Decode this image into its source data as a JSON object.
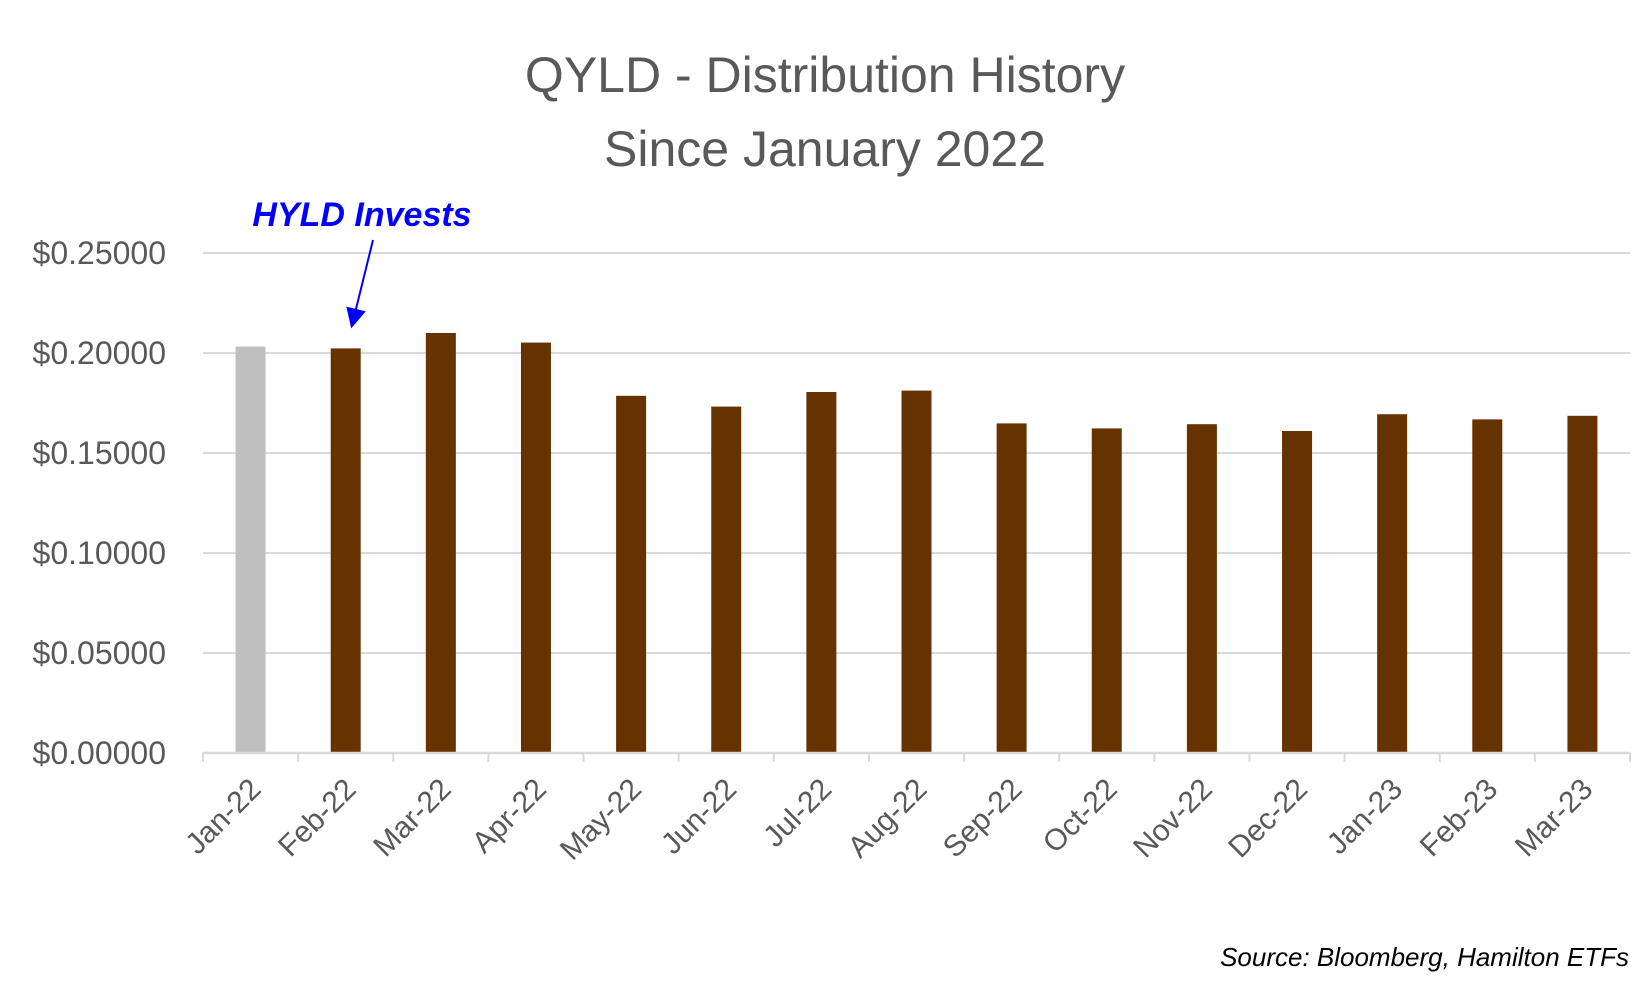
{
  "chart_data": {
    "type": "bar",
    "title": [
      "QYLD - Distribution History",
      "Since January 2022"
    ],
    "categories": [
      "Jan-22",
      "Feb-22",
      "Mar-22",
      "Apr-22",
      "May-22",
      "Jun-22",
      "Jul-22",
      "Aug-22",
      "Sep-22",
      "Oct-22",
      "Nov-22",
      "Dec-22",
      "Jan-23",
      "Feb-23",
      "Mar-23"
    ],
    "values": [
      0.2032,
      0.2023,
      0.21,
      0.2052,
      0.1786,
      0.1732,
      0.1805,
      0.1812,
      0.1648,
      0.1623,
      0.1644,
      0.161,
      0.1694,
      0.1668,
      0.1686
    ],
    "bar_colors": [
      "#bfbfbf",
      "#663300",
      "#663300",
      "#663300",
      "#663300",
      "#663300",
      "#663300",
      "#663300",
      "#663300",
      "#663300",
      "#663300",
      "#663300",
      "#663300",
      "#663300",
      "#663300"
    ],
    "ylim": [
      0,
      0.25
    ],
    "yticks": [
      "$0.00000",
      "$0.05000",
      "$0.10000",
      "$0.15000",
      "$0.20000",
      "$0.25000"
    ],
    "ytick_values": [
      0,
      0.05,
      0.1,
      0.15,
      0.2,
      0.25
    ],
    "grid": true,
    "legend": "none",
    "annotation": {
      "text": "HYLD Invests",
      "target_category": "Feb-22",
      "color": "#0000ff"
    },
    "source": "Source: Bloomberg,  Hamilton ETFs"
  }
}
